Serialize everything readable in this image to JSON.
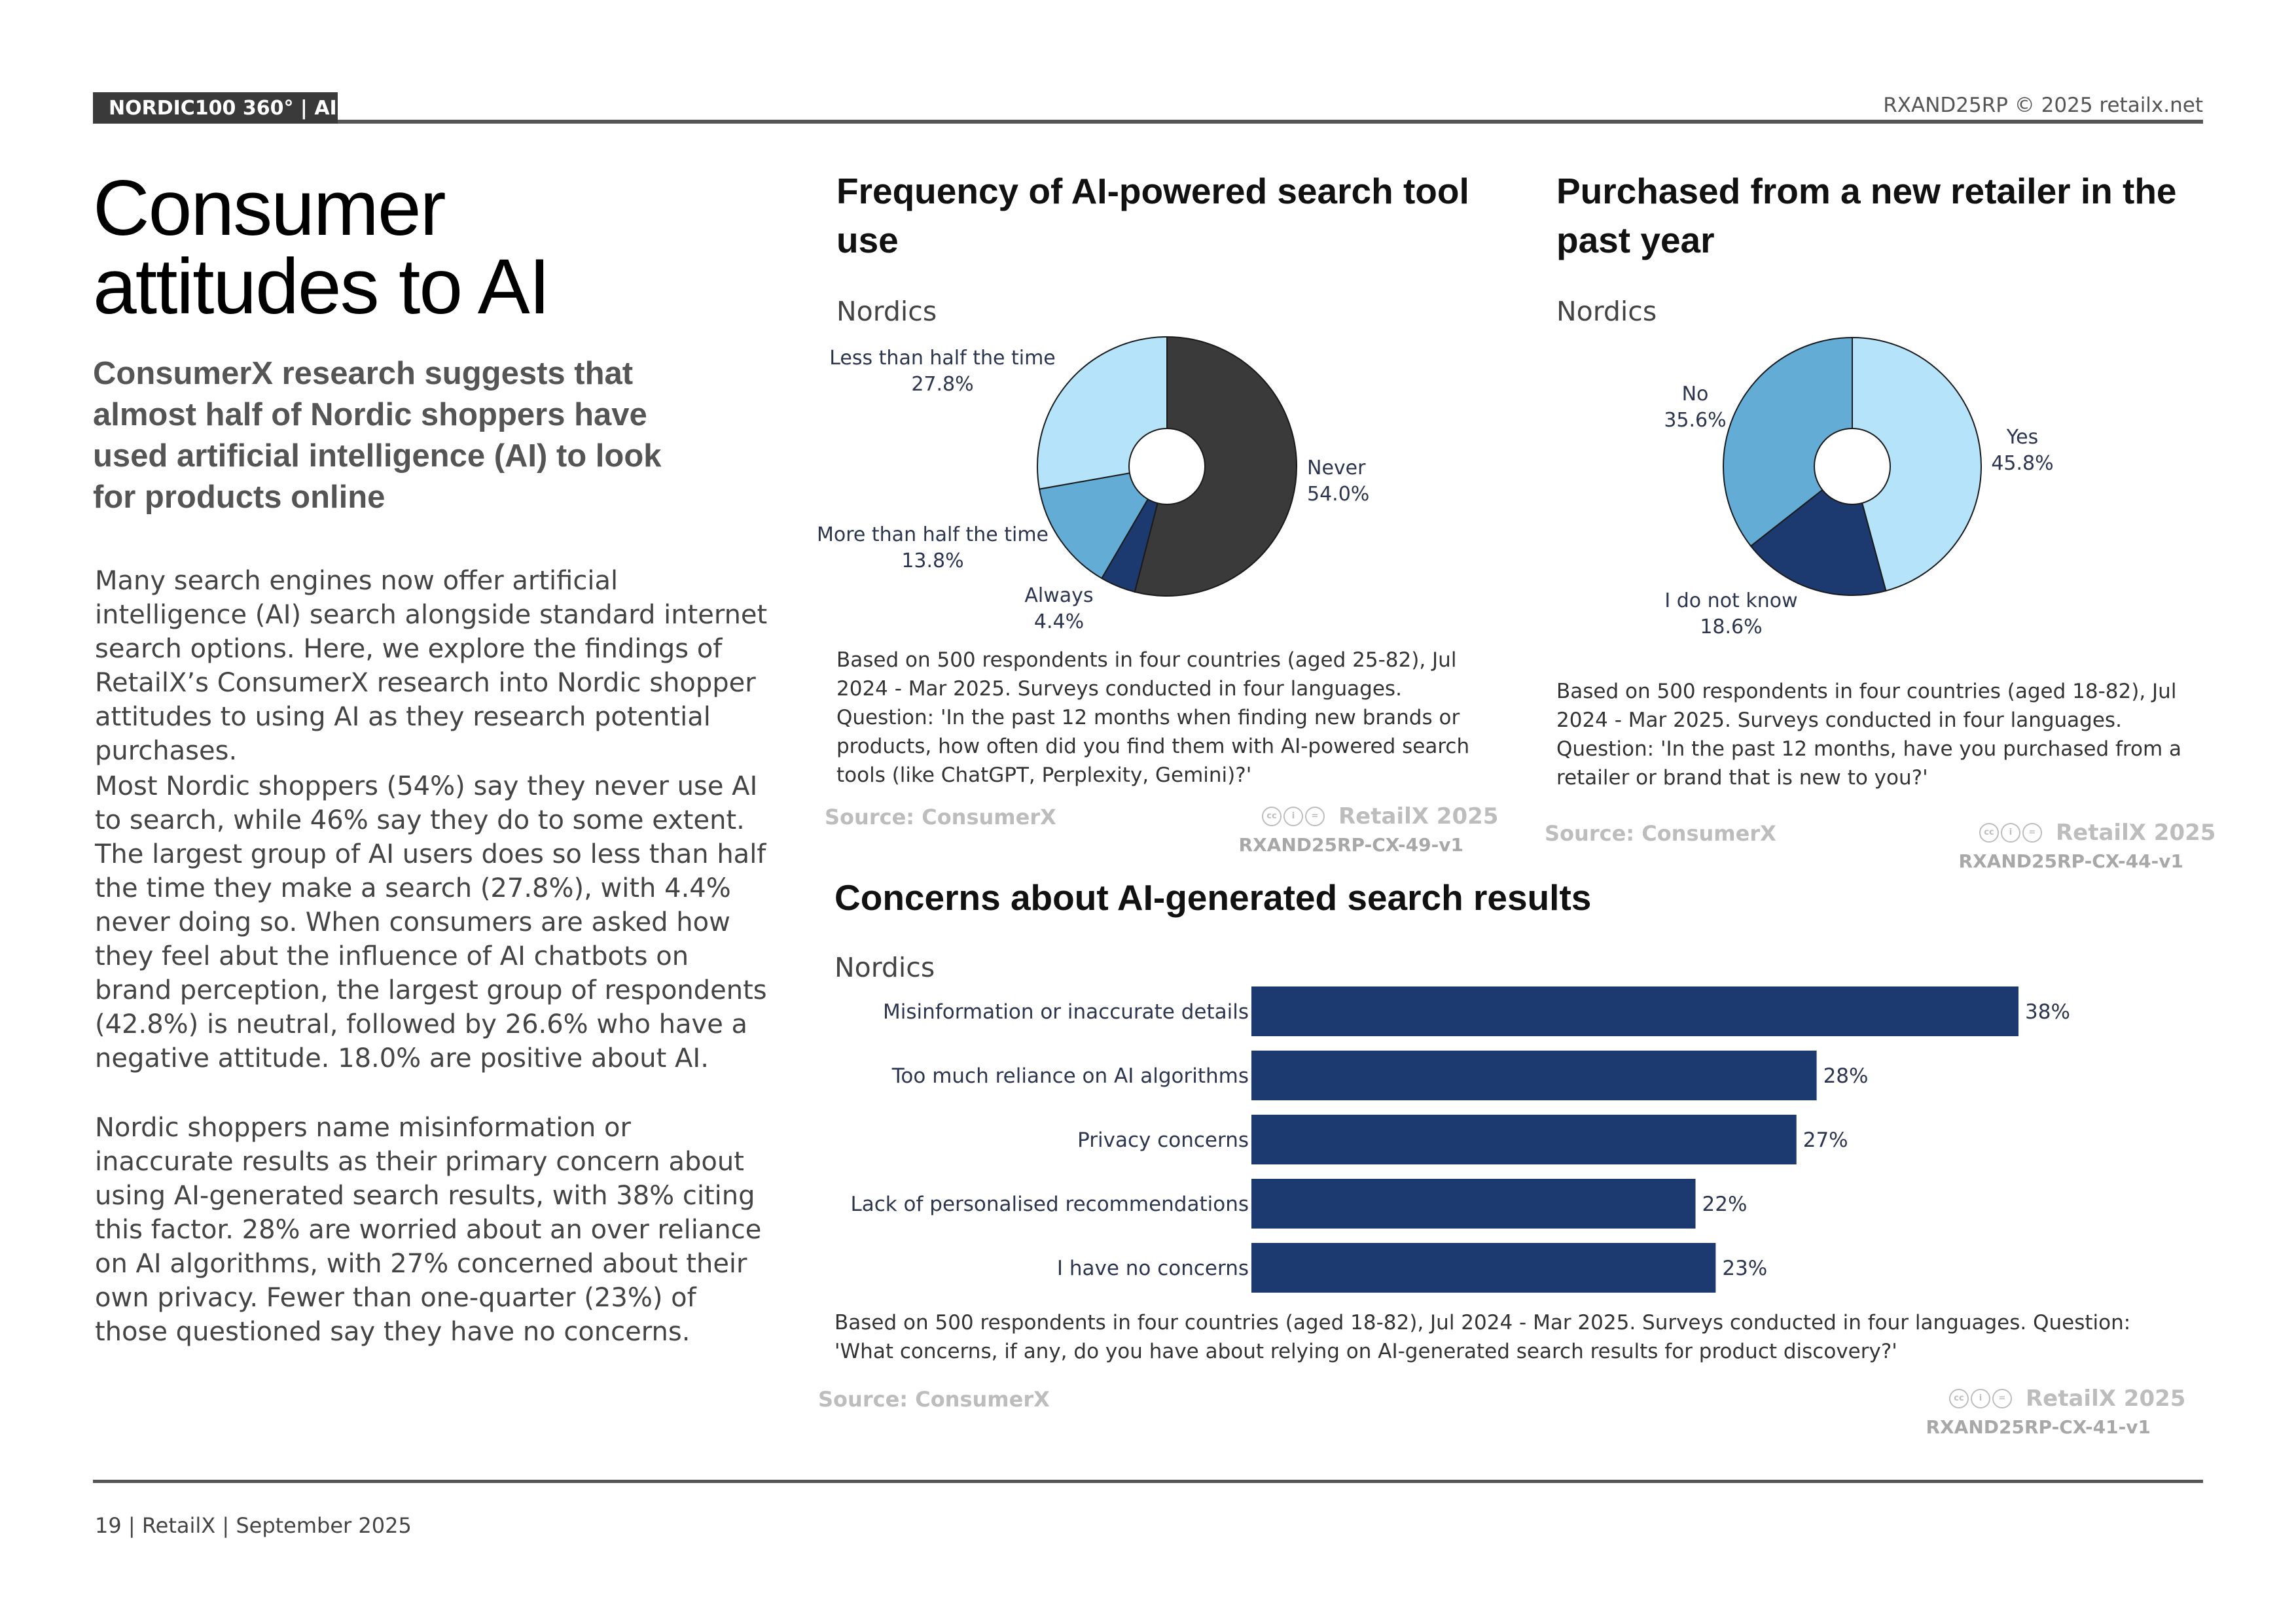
{
  "header": {
    "section_tag": "NORDIC100 360° | AI",
    "copyright": "RXAND25RP © 2025 retailx.net"
  },
  "article": {
    "title_line1": "Consumer",
    "title_line2": "attitudes to AI",
    "subtitle": "ConsumerX research suggests that almost half of Nordic shoppers have used artificial intelligence (AI) to look for products online",
    "paragraphs": [
      "Many search engines now offer artificial intelligence (AI) search alongside standard internet search options. Here, we explore the findings of RetailX’s ConsumerX research into Nordic shopper attitudes to using AI as they research potential purchases.",
      "Most Nordic shoppers (54%) say they never use AI to search, while 46% say they do to some extent. The largest group of AI users does so less than half the time they make a search (27.8%), with 4.4% never doing so. When consumers are asked how they feel abut the influence of AI chatbots on brand perception, the largest group of respondents (42.8%) is neutral, followed by 26.6% who have a negative attitude. 18.0% are positive about AI.",
      "Nordic shoppers name misinformation or inaccurate results as their primary concern about using AI-generated search results, with 38% citing this factor. 28% are worried about an over reliance on AI algorithms, with 27% concerned about their own privacy. Fewer than one-quarter (23%) of those questioned say they have no concerns."
    ]
  },
  "charts_meta": [
    {
      "region": "Nordics",
      "note": "Based on 500 respondents in four countries (aged 25-82), Jul 2024 - Mar 2025. Surveys conducted in four languages. Question: 'In the past 12 months when finding new brands or products, how often did you find them with AI-powered search tools (like ChatGPT, Perplexity, Gemini)?'",
      "source": "Source: ConsumerX",
      "brand": "RetailX 2025",
      "code": "RXAND25RP-CX-49-v1"
    },
    {
      "region": "Nordics",
      "note": "Based on 500 respondents in four countries (aged 18-82), Jul 2024 - Mar 2025. Surveys conducted in four languages. Question: 'In the past 12 months, have you purchased from a retailer or brand that is new to you?'",
      "source": "Source: ConsumerX",
      "brand": "RetailX 2025",
      "code": "RXAND25RP-CX-44-v1"
    },
    {
      "region": "Nordics",
      "note": "Based on 500 respondents in four countries (aged 18-82), Jul 2024 - Mar 2025. Surveys conducted in four languages. Question: 'What concerns, if any, do you have about relying on AI-generated search results for product discovery?'",
      "source": "Source: ConsumerX",
      "brand": "RetailX 2025",
      "code": "RXAND25RP-CX-41-v1"
    }
  ],
  "chart_data": [
    {
      "type": "pie",
      "title": "Frequency of AI-powered search tool use",
      "categories": [
        "Never",
        "Always",
        "More than half the time",
        "Less than half the time"
      ],
      "values": [
        54.0,
        4.4,
        13.8,
        27.8
      ],
      "labels": [
        "54.0%",
        "4.4%",
        "13.8%",
        "27.8%"
      ],
      "colors": [
        "#3a3a3a",
        "#1d3a70",
        "#62acd6",
        "#b5e3fa"
      ],
      "donut": true
    },
    {
      "type": "pie",
      "title": "Purchased from a new retailer in the past year",
      "categories": [
        "Yes",
        "I do not know",
        "No"
      ],
      "values": [
        45.8,
        18.6,
        35.6
      ],
      "labels": [
        "45.8%",
        "18.6%",
        "35.6%"
      ],
      "colors": [
        "#b5e3fa",
        "#1d3a70",
        "#62acd6"
      ],
      "donut": true
    },
    {
      "type": "bar",
      "orientation": "horizontal",
      "title": "Concerns about AI-generated search results",
      "categories": [
        "Misinformation or inaccurate details",
        "Too much reliance on AI algorithms",
        "Privacy concerns",
        "Lack of personalised recommendations",
        "I have no concerns"
      ],
      "values": [
        38,
        28,
        27,
        22,
        23
      ],
      "labels": [
        "38%",
        "28%",
        "27%",
        "22%",
        "23%"
      ],
      "color": "#1d3a70",
      "xlim": [
        0,
        38
      ]
    }
  ],
  "footer": {
    "text": "19 | RetailX | September 2025"
  }
}
